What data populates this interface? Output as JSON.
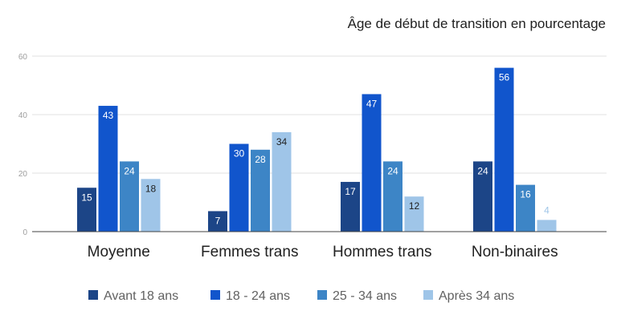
{
  "chart_data": {
    "type": "bar",
    "title": "Âge de début de transition en pourcentage",
    "xlabel": "",
    "ylabel": "",
    "categories": [
      "Moyenne",
      "Femmes trans",
      "Hommes trans",
      "Non-binaires"
    ],
    "series": [
      {
        "name": "Avant 18 ans",
        "color": "#1c4587",
        "label_color": "#ffffff",
        "values": [
          15,
          7,
          17,
          24
        ]
      },
      {
        "name": "18 - 24 ans",
        "color": "#1155cc",
        "label_color": "#ffffff",
        "values": [
          43,
          30,
          47,
          56
        ]
      },
      {
        "name": "25 - 34 ans",
        "color": "#3d85c6",
        "label_color": "#ffffff",
        "values": [
          24,
          28,
          24,
          16
        ]
      },
      {
        "name": "Après 34 ans",
        "color": "#9fc5e8",
        "label_color": "#212121",
        "values": [
          18,
          34,
          12,
          4
        ]
      }
    ],
    "value_label_overrides": [
      {
        "series": 3,
        "category": 3,
        "color": "#9fc5e8"
      }
    ],
    "ylim": [
      0,
      60
    ],
    "yticks": [
      0,
      20,
      40,
      60
    ],
    "grid": true,
    "legend_position": "bottom"
  }
}
